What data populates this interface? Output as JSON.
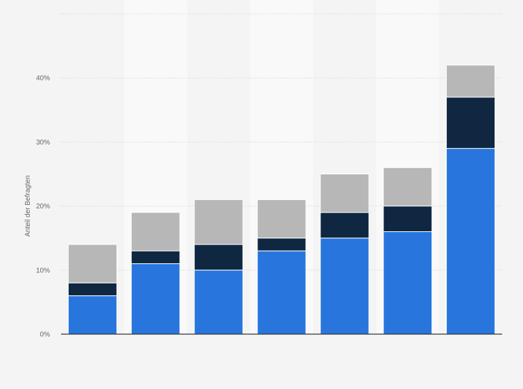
{
  "chart_data": {
    "type": "bar",
    "stacked": true,
    "categories": [
      "",
      "",
      "",
      "",
      "",
      "",
      ""
    ],
    "series": [
      {
        "values": [
          6,
          11,
          10,
          13,
          15,
          16,
          29
        ],
        "color": "#2876dd"
      },
      {
        "values": [
          2,
          2,
          4,
          2,
          4,
          4,
          8
        ],
        "color": "#0f2741"
      },
      {
        "values": [
          6,
          6,
          7,
          6,
          6,
          6,
          5
        ],
        "color": "#b7b7b7"
      }
    ],
    "title": "",
    "xlabel": "",
    "ylabel": "Anteil der Befragten",
    "ylim": [
      0,
      50
    ],
    "yticks": [
      0,
      10,
      20,
      30,
      40
    ],
    "ytick_labels": [
      "0%",
      "10%",
      "20%",
      "30%",
      "40%"
    ],
    "grid": true,
    "legend": "none",
    "colors": {
      "background": "#f4f4f4",
      "band": "#f9f9f9",
      "gridline": "#d6d6d6",
      "baseline": "#333333"
    }
  }
}
